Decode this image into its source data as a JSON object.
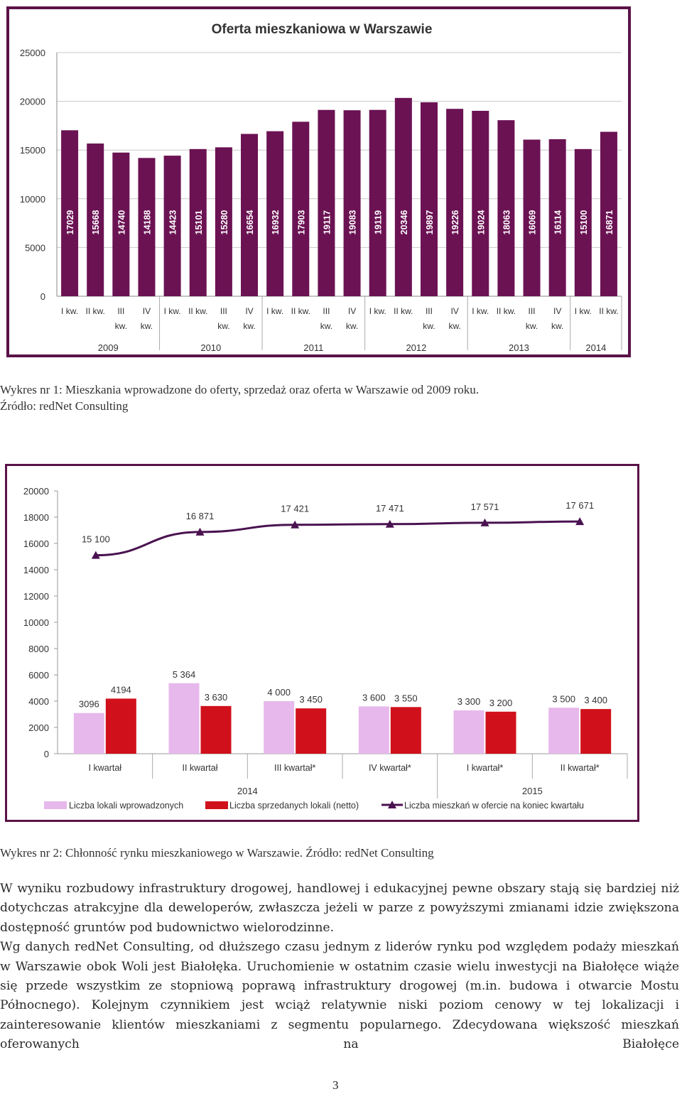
{
  "chart_data": [
    {
      "type": "bar",
      "title": "Oferta mieszkaniowa w Warszawie",
      "ylim": [
        0,
        25000
      ],
      "yticks": [
        0,
        5000,
        10000,
        15000,
        20000,
        25000
      ],
      "grid": true,
      "bar_color": "#6b1253",
      "quarters": [
        "I kw.",
        "II kw.",
        "III kw.",
        "IV kw.",
        "I kw.",
        "II kw.",
        "III kw.",
        "IV kw.",
        "I kw.",
        "II kw.",
        "III kw.",
        "IV kw.",
        "I kw.",
        "II kw.",
        "III kw.",
        "IV kw.",
        "I kw.",
        "II kw.",
        "III kw.",
        "IV kw.",
        "I kw.",
        "II kw."
      ],
      "years": [
        "2009",
        "2010",
        "2011",
        "2012",
        "2013",
        "2014"
      ],
      "values": [
        17029,
        15668,
        14740,
        14188,
        14423,
        15101,
        15280,
        16654,
        16932,
        17903,
        19117,
        19083,
        19119,
        20346,
        19897,
        19226,
        19024,
        18063,
        16069,
        16114,
        15100,
        16871
      ],
      "labels": [
        "17029",
        "15668",
        "14740",
        "14188",
        "14423",
        "15101",
        "15280",
        "16654",
        "16932",
        "17903",
        "19117",
        "19083",
        "19119",
        "20346",
        "19897",
        "19226",
        "19024",
        "18063",
        "16069",
        "16114",
        "15100",
        "16871"
      ]
    },
    {
      "type": "bar",
      "ylim": [
        0,
        20000
      ],
      "yticks": [
        0,
        2000,
        4000,
        6000,
        8000,
        10000,
        12000,
        14000,
        16000,
        18000,
        20000
      ],
      "categories": [
        "I kwartał",
        "II kwartał",
        "III kwartał*",
        "IV kwartał*",
        "I kwartał*",
        "II kwartał*"
      ],
      "years": [
        "2014",
        "2015"
      ],
      "series": [
        {
          "name": "Liczba lokali wprowadzonych",
          "color": "#e7b8ec",
          "values": [
            3096,
            5364,
            4000,
            3600,
            3300,
            3500
          ],
          "labels": [
            "3096",
            "5 364",
            "4 000",
            "3 600",
            "3 300",
            "3 500"
          ]
        },
        {
          "name": "Liczba sprzedanych lokali (netto)",
          "color": "#d0111b",
          "values": [
            4194,
            3630,
            3450,
            3550,
            3200,
            3400
          ],
          "labels": [
            "4194",
            "3 630",
            "3 450",
            "3 550",
            "3 200",
            "3 400"
          ]
        },
        {
          "name": "Liczba mieszkań w ofercie na koniec kwartału",
          "type": "line",
          "color": "#4a1250",
          "values": [
            15100,
            16871,
            17421,
            17471,
            17571,
            17671
          ],
          "labels": [
            "15 100",
            "16 871",
            "17 421",
            "17 471",
            "17 571",
            "17 671"
          ]
        }
      ],
      "legend_position": "bottom"
    }
  ],
  "captions": {
    "chart1_line1": "Wykres nr 1: Mieszkania wprowadzone do oferty, sprzedaż oraz oferta w Warszawie od 2009 roku.",
    "chart1_line2": "Źródło: redNet Consulting",
    "chart2": "Wykres nr 2: Chłonność rynku mieszkaniowego w Warszawie. Źródło: redNet Consulting"
  },
  "body": {
    "paragraph1": "W wyniku rozbudowy infrastruktury drogowej, handlowej i edukacyjnej pewne obszary stają się bardziej niż dotychczas atrakcyjne dla deweloperów, zwłaszcza jeżeli w parze z powyższymi zmianami idzie zwiększona dostępność gruntów pod budownictwo wielorodzinne.",
    "paragraph2": "Wg danych redNet Consulting, od dłuższego czasu jednym z liderów rynku pod względem podaży mieszkań w Warszawie obok Woli jest Białołęka. Uruchomienie w ostatnim czasie wielu inwestycji na Białołęce wiąże się przede wszystkim ze stopniową poprawą infrastruktury drogowej (m.in. budowa i otwarcie Mostu Północnego). Kolejnym czynnikiem jest wciąż relatywnie niski poziom cenowy w tej lokalizacji i zainteresowanie klientów mieszkaniami z segmentu popularnego. Zdecydowana większość mieszkań oferowanych na Białołęce"
  },
  "page_number": "3"
}
